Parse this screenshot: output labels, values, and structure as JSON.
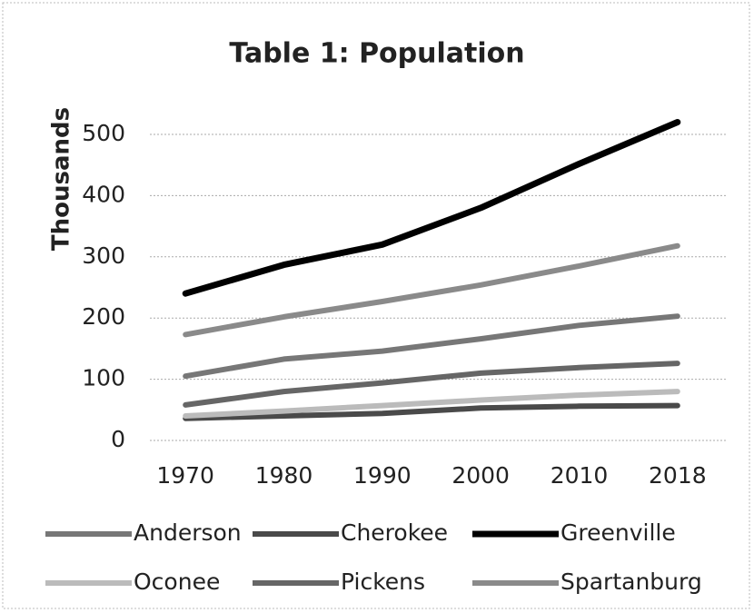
{
  "chart_data": {
    "type": "line",
    "title": "Table 1: Population",
    "y_label": "Thousands",
    "categories": [
      "1970",
      "1980",
      "1990",
      "2000",
      "2010",
      "2018"
    ],
    "series": [
      {
        "name": "Anderson",
        "color": "#777777",
        "values": [
          105,
          133,
          146,
          166,
          188,
          203
        ]
      },
      {
        "name": "Cherokee",
        "color": "#4a4a4a",
        "values": [
          36,
          40,
          44,
          53,
          56,
          57
        ]
      },
      {
        "name": "Greenville",
        "color": "#000000",
        "values": [
          240,
          287,
          320,
          380,
          452,
          520
        ]
      },
      {
        "name": "Oconee",
        "color": "#bbbbbb",
        "values": [
          40,
          48,
          57,
          66,
          74,
          80
        ]
      },
      {
        "name": "Pickens",
        "color": "#666666",
        "values": [
          58,
          80,
          94,
          110,
          119,
          126
        ]
      },
      {
        "name": "Spartanburg",
        "color": "#8a8a8a",
        "values": [
          173,
          202,
          227,
          254,
          285,
          318
        ]
      }
    ],
    "ylim": [
      0,
      500
    ],
    "yticks": [
      0,
      100,
      200,
      300,
      400,
      500
    ],
    "grid": true,
    "legend": "bottom"
  }
}
